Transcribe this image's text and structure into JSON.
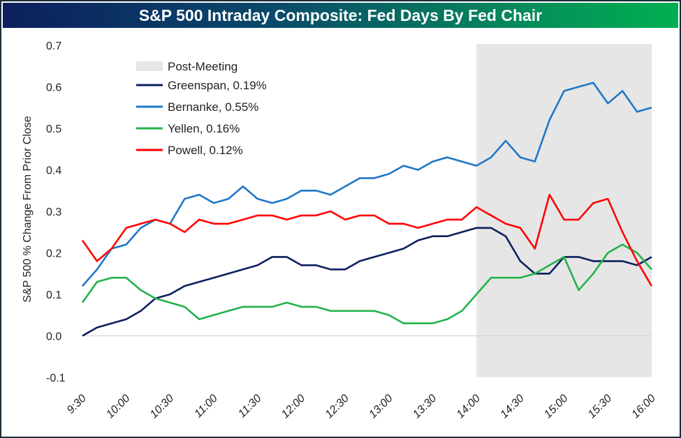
{
  "chart_data": {
    "type": "line",
    "title": "S&P 500 Intraday Composite: Fed Days By Fed Chair",
    "ylabel": "S&P 500 % Change From Prior Close",
    "xlabel": "",
    "ylim": [
      -0.1,
      0.7
    ],
    "yticks": [
      "-0.1",
      "0.0",
      "0.1",
      "0.2",
      "0.3",
      "0.4",
      "0.5",
      "0.6",
      "0.7"
    ],
    "xticks": [
      "9:30",
      "10:00",
      "10:30",
      "11:00",
      "11:30",
      "12:00",
      "12:30",
      "13:00",
      "13:30",
      "14:00",
      "14:30",
      "15:00",
      "15:30",
      "16:00"
    ],
    "grid": false,
    "legend_placement": "top-left",
    "shaded_region": {
      "label": "Post-Meeting",
      "from": "14:00",
      "to": "16:00",
      "color": "#e6e6e6"
    },
    "x": [
      "9:30",
      "9:40",
      "9:50",
      "10:00",
      "10:10",
      "10:20",
      "10:30",
      "10:40",
      "10:50",
      "11:00",
      "11:10",
      "11:20",
      "11:30",
      "11:40",
      "11:50",
      "12:00",
      "12:10",
      "12:20",
      "12:30",
      "12:40",
      "12:50",
      "13:00",
      "13:10",
      "13:20",
      "13:30",
      "13:40",
      "13:50",
      "14:00",
      "14:10",
      "14:20",
      "14:30",
      "14:40",
      "14:50",
      "15:00",
      "15:10",
      "15:20",
      "15:30",
      "15:40",
      "15:50",
      "16:00"
    ],
    "series": [
      {
        "name": "Greenspan, 0.19%",
        "color": "#0c1f5e",
        "values": [
          0.0,
          0.02,
          0.03,
          0.04,
          0.06,
          0.09,
          0.1,
          0.12,
          0.13,
          0.14,
          0.15,
          0.16,
          0.17,
          0.19,
          0.19,
          0.17,
          0.17,
          0.16,
          0.16,
          0.18,
          0.19,
          0.2,
          0.21,
          0.23,
          0.24,
          0.24,
          0.25,
          0.26,
          0.26,
          0.24,
          0.18,
          0.15,
          0.15,
          0.19,
          0.19,
          0.18,
          0.18,
          0.18,
          0.17,
          0.19
        ]
      },
      {
        "name": "Bernanke, 0.55%",
        "color": "#1f77c8",
        "values": [
          0.12,
          0.16,
          0.21,
          0.22,
          0.26,
          0.28,
          0.27,
          0.33,
          0.34,
          0.32,
          0.33,
          0.36,
          0.33,
          0.32,
          0.33,
          0.35,
          0.35,
          0.34,
          0.36,
          0.38,
          0.38,
          0.39,
          0.41,
          0.4,
          0.42,
          0.43,
          0.42,
          0.41,
          0.43,
          0.47,
          0.43,
          0.42,
          0.52,
          0.59,
          0.6,
          0.61,
          0.56,
          0.59,
          0.54,
          0.55
        ]
      },
      {
        "name": "Yellen, 0.16%",
        "color": "#22b24c",
        "values": [
          0.08,
          0.13,
          0.14,
          0.14,
          0.11,
          0.09,
          0.08,
          0.07,
          0.04,
          0.05,
          0.06,
          0.07,
          0.07,
          0.07,
          0.08,
          0.07,
          0.07,
          0.06,
          0.06,
          0.06,
          0.06,
          0.05,
          0.03,
          0.03,
          0.03,
          0.04,
          0.06,
          0.1,
          0.14,
          0.14,
          0.14,
          0.15,
          0.17,
          0.19,
          0.11,
          0.15,
          0.2,
          0.22,
          0.2,
          0.16
        ]
      },
      {
        "name": "Powell, 0.12%",
        "color": "#ff0000",
        "values": [
          0.23,
          0.18,
          0.21,
          0.26,
          0.27,
          0.28,
          0.27,
          0.25,
          0.28,
          0.27,
          0.27,
          0.28,
          0.29,
          0.29,
          0.28,
          0.29,
          0.29,
          0.3,
          0.28,
          0.29,
          0.29,
          0.27,
          0.27,
          0.26,
          0.27,
          0.28,
          0.28,
          0.31,
          0.29,
          0.27,
          0.26,
          0.21,
          0.34,
          0.28,
          0.28,
          0.32,
          0.33,
          0.25,
          0.18,
          0.12
        ]
      }
    ]
  }
}
